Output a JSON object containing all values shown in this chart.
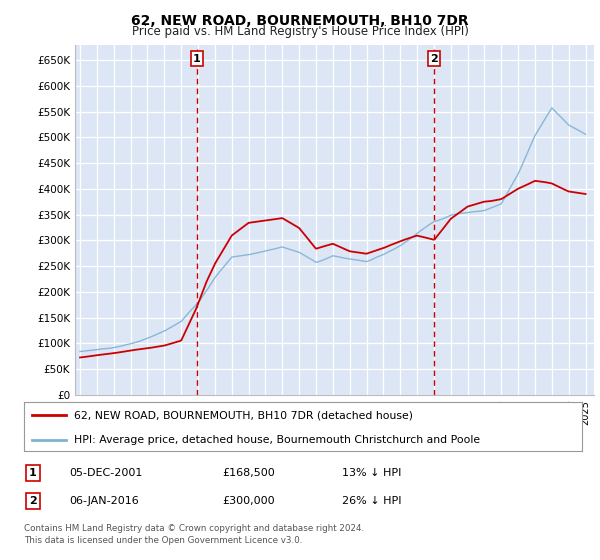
{
  "title": "62, NEW ROAD, BOURNEMOUTH, BH10 7DR",
  "subtitle": "Price paid vs. HM Land Registry's House Price Index (HPI)",
  "ylabel_ticks": [
    "£0",
    "£50K",
    "£100K",
    "£150K",
    "£200K",
    "£250K",
    "£300K",
    "£350K",
    "£400K",
    "£450K",
    "£500K",
    "£550K",
    "£600K",
    "£650K"
  ],
  "ytick_values": [
    0,
    50000,
    100000,
    150000,
    200000,
    250000,
    300000,
    350000,
    400000,
    450000,
    500000,
    550000,
    600000,
    650000
  ],
  "ylim": [
    0,
    680000
  ],
  "xlim_start": 1994.7,
  "xlim_end": 2025.5,
  "sale1_x": 2001.92,
  "sale1_y": 168500,
  "sale2_x": 2016.02,
  "sale2_y": 300000,
  "red_color": "#cc0000",
  "blue_color": "#7fb3d3",
  "legend_line1": "62, NEW ROAD, BOURNEMOUTH, BH10 7DR (detached house)",
  "legend_line2": "HPI: Average price, detached house, Bournemouth Christchurch and Poole",
  "table_row1": [
    "1",
    "05-DEC-2001",
    "£168,500",
    "13% ↓ HPI"
  ],
  "table_row2": [
    "2",
    "06-JAN-2016",
    "£300,000",
    "26% ↓ HPI"
  ],
  "footer": "Contains HM Land Registry data © Crown copyright and database right 2024.\nThis data is licensed under the Open Government Licence v3.0.",
  "plot_bg_color": "#dce6f5",
  "hpi_points": [
    [
      1995,
      80000
    ],
    [
      1996,
      84000
    ],
    [
      1997,
      89000
    ],
    [
      1998,
      96000
    ],
    [
      1999,
      107000
    ],
    [
      2000,
      120000
    ],
    [
      2001,
      138000
    ],
    [
      2002,
      175000
    ],
    [
      2003,
      225000
    ],
    [
      2004,
      265000
    ],
    [
      2005,
      270000
    ],
    [
      2006,
      278000
    ],
    [
      2007,
      285000
    ],
    [
      2008,
      275000
    ],
    [
      2009,
      255000
    ],
    [
      2010,
      268000
    ],
    [
      2011,
      262000
    ],
    [
      2012,
      258000
    ],
    [
      2013,
      272000
    ],
    [
      2014,
      290000
    ],
    [
      2015,
      315000
    ],
    [
      2016,
      338000
    ],
    [
      2017,
      352000
    ],
    [
      2018,
      358000
    ],
    [
      2019,
      362000
    ],
    [
      2020,
      375000
    ],
    [
      2021,
      435000
    ],
    [
      2022,
      510000
    ],
    [
      2023,
      565000
    ],
    [
      2024,
      530000
    ],
    [
      2025,
      510000
    ]
  ],
  "red_points": [
    [
      1995,
      72000
    ],
    [
      1996,
      76000
    ],
    [
      1997,
      80000
    ],
    [
      1998,
      85000
    ],
    [
      1999,
      90000
    ],
    [
      2000,
      96000
    ],
    [
      2001,
      105000
    ],
    [
      2001.9,
      168500
    ],
    [
      2002.5,
      220000
    ],
    [
      2003,
      255000
    ],
    [
      2004,
      310000
    ],
    [
      2005,
      335000
    ],
    [
      2006,
      340000
    ],
    [
      2007,
      345000
    ],
    [
      2008,
      325000
    ],
    [
      2009,
      285000
    ],
    [
      2010,
      295000
    ],
    [
      2011,
      280000
    ],
    [
      2012,
      275000
    ],
    [
      2013,
      285000
    ],
    [
      2014,
      298000
    ],
    [
      2015,
      308000
    ],
    [
      2016.02,
      300000
    ],
    [
      2017,
      340000
    ],
    [
      2018,
      365000
    ],
    [
      2019,
      375000
    ],
    [
      2020,
      380000
    ],
    [
      2021,
      400000
    ],
    [
      2022,
      415000
    ],
    [
      2023,
      410000
    ],
    [
      2024,
      395000
    ],
    [
      2025,
      390000
    ]
  ]
}
